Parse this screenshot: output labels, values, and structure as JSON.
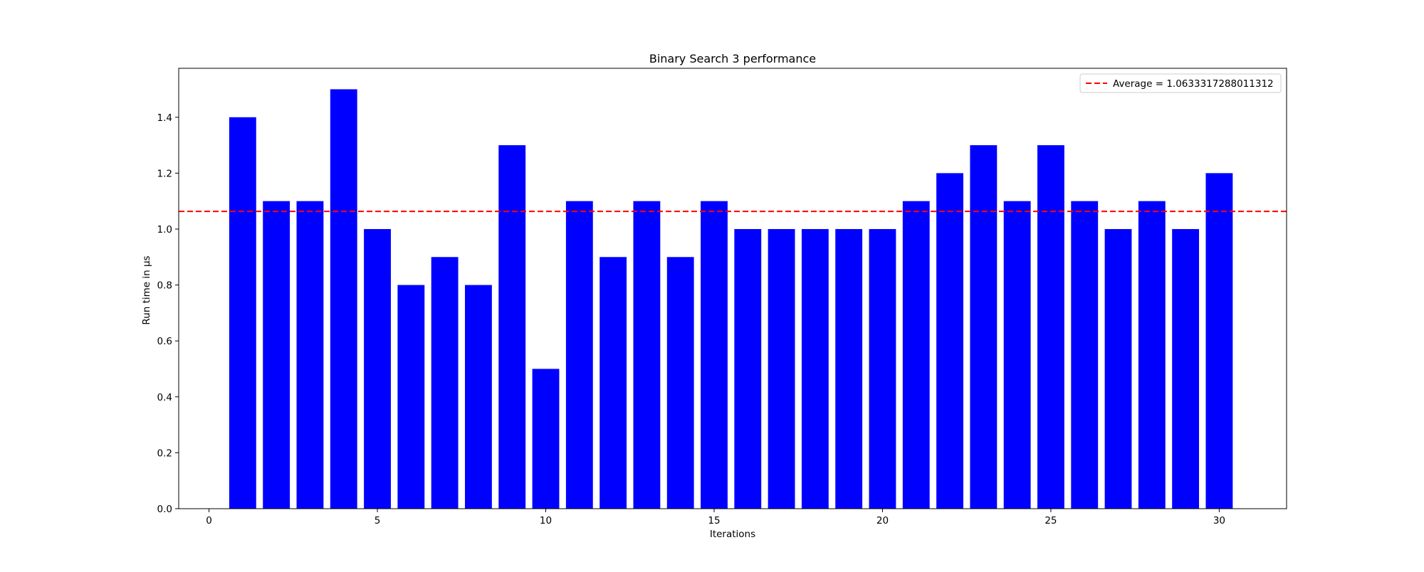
{
  "chart_data": {
    "type": "bar",
    "title": "Binary Search 3 performance",
    "xlabel": "Iterations",
    "ylabel": "Run time in µs",
    "x": [
      1,
      2,
      3,
      4,
      5,
      6,
      7,
      8,
      9,
      10,
      11,
      12,
      13,
      14,
      15,
      16,
      17,
      18,
      19,
      20,
      21,
      22,
      23,
      24,
      25,
      26,
      27,
      28,
      29,
      30
    ],
    "values": [
      1.4,
      1.1,
      1.1,
      1.5,
      1.0,
      0.8,
      0.9,
      0.8,
      1.3,
      0.5,
      1.1,
      0.9,
      1.1,
      0.9,
      1.1,
      1.0,
      1.0,
      1.0,
      1.0,
      1.0,
      1.1,
      1.2,
      1.3,
      1.1,
      1.3,
      1.1,
      1.0,
      1.1,
      1.0,
      1.2
    ],
    "xlim": [
      -0.9,
      32.0
    ],
    "ylim": [
      0,
      1.575
    ],
    "xticks": [
      0,
      5,
      10,
      15,
      20,
      25,
      30
    ],
    "yticks": [
      0.0,
      0.2,
      0.4,
      0.6,
      0.8,
      1.0,
      1.2,
      1.4
    ],
    "ytick_labels": [
      "0.0",
      "0.2",
      "0.4",
      "0.6",
      "0.8",
      "1.0",
      "1.2",
      "1.4"
    ],
    "bar_color": "#0000ff",
    "average": {
      "value": 1.0633317288011312,
      "label": "Average = 1.0633317288011312",
      "color": "#ff0000",
      "style": "dashed"
    },
    "legend_placement": "top-right",
    "grid": false
  }
}
